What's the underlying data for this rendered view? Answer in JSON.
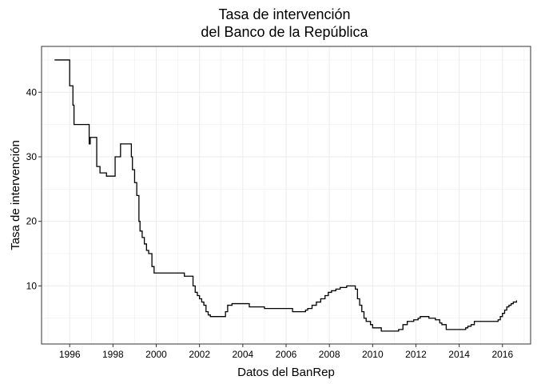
{
  "chart_data": {
    "type": "line",
    "title": [
      "Tasa de intervención",
      "del Banco de la República"
    ],
    "xlabel": "Datos del BanRep",
    "ylabel": "Tasa de intervención",
    "xlim": [
      1994.7,
      2017.3
    ],
    "ylim": [
      1.0,
      47.1
    ],
    "x_ticks": [
      1996,
      1998,
      2000,
      2002,
      2004,
      2006,
      2008,
      2010,
      2012,
      2014,
      2016
    ],
    "x_tick_labels": [
      "1996",
      "1998",
      "2000",
      "2002",
      "2004",
      "2006",
      "2008",
      "2010",
      "2012",
      "2014",
      "2016"
    ],
    "y_ticks": [
      10,
      20,
      30,
      40
    ],
    "y_tick_labels": [
      "10",
      "20",
      "30",
      "40"
    ],
    "grid": true,
    "line_color": "#000000",
    "grid_color": "#ebebeb",
    "series": [
      {
        "step": true,
        "x": [
          1995.3,
          1996.0,
          1996.15,
          1996.2,
          1996.9,
          1996.95,
          1997.0,
          1997.25,
          1997.4,
          1997.7,
          1998.1,
          1998.35,
          1998.85,
          1998.9,
          1999.0,
          1999.1,
          1999.2,
          1999.25,
          1999.35,
          1999.45,
          1999.55,
          1999.65,
          1999.8,
          1999.9,
          2000.0,
          2001.3,
          2001.7,
          2001.8,
          2001.9,
          2002.0,
          2002.1,
          2002.2,
          2002.3,
          2002.4,
          2002.5,
          2002.6,
          2002.7,
          2003.2,
          2003.3,
          2003.5,
          2004.3,
          2005.0,
          2005.8,
          2006.3,
          2006.7,
          2006.9,
          2007.0,
          2007.2,
          2007.4,
          2007.6,
          2007.8,
          2007.95,
          2008.1,
          2008.3,
          2008.5,
          2008.8,
          2009.2,
          2009.3,
          2009.4,
          2009.5,
          2009.6,
          2009.7,
          2009.9,
          2010.0,
          2010.4,
          2011.2,
          2011.4,
          2011.6,
          2011.9,
          2012.1,
          2012.2,
          2012.3,
          2012.6,
          2012.9,
          2013.1,
          2013.2,
          2013.4,
          2014.3,
          2014.4,
          2014.55,
          2014.7,
          2015.8,
          2015.9,
          2016.0,
          2016.1,
          2016.2,
          2016.3,
          2016.4,
          2016.5,
          2016.65
        ],
        "y": [
          45.0,
          41.0,
          38.0,
          35.0,
          32.0,
          33.0,
          33.0,
          28.5,
          27.5,
          27.0,
          30.0,
          32.0,
          30.0,
          28.0,
          26.0,
          24.0,
          20.0,
          18.5,
          17.5,
          16.5,
          15.5,
          15.0,
          13.0,
          12.0,
          12.0,
          11.5,
          10.0,
          9.0,
          8.5,
          8.0,
          7.5,
          7.0,
          6.0,
          5.5,
          5.25,
          5.25,
          5.25,
          6.0,
          7.0,
          7.25,
          6.75,
          6.5,
          6.5,
          6.0,
          6.0,
          6.25,
          6.5,
          7.0,
          7.5,
          8.0,
          8.5,
          9.0,
          9.25,
          9.5,
          9.75,
          10.0,
          9.5,
          8.0,
          7.0,
          6.0,
          5.0,
          4.5,
          4.0,
          3.5,
          3.0,
          3.25,
          4.0,
          4.5,
          4.75,
          5.0,
          5.25,
          5.25,
          5.0,
          4.75,
          4.25,
          4.0,
          3.25,
          3.5,
          3.75,
          4.0,
          4.5,
          4.75,
          5.25,
          5.75,
          6.25,
          6.75,
          7.0,
          7.25,
          7.5,
          7.75
        ]
      }
    ]
  }
}
